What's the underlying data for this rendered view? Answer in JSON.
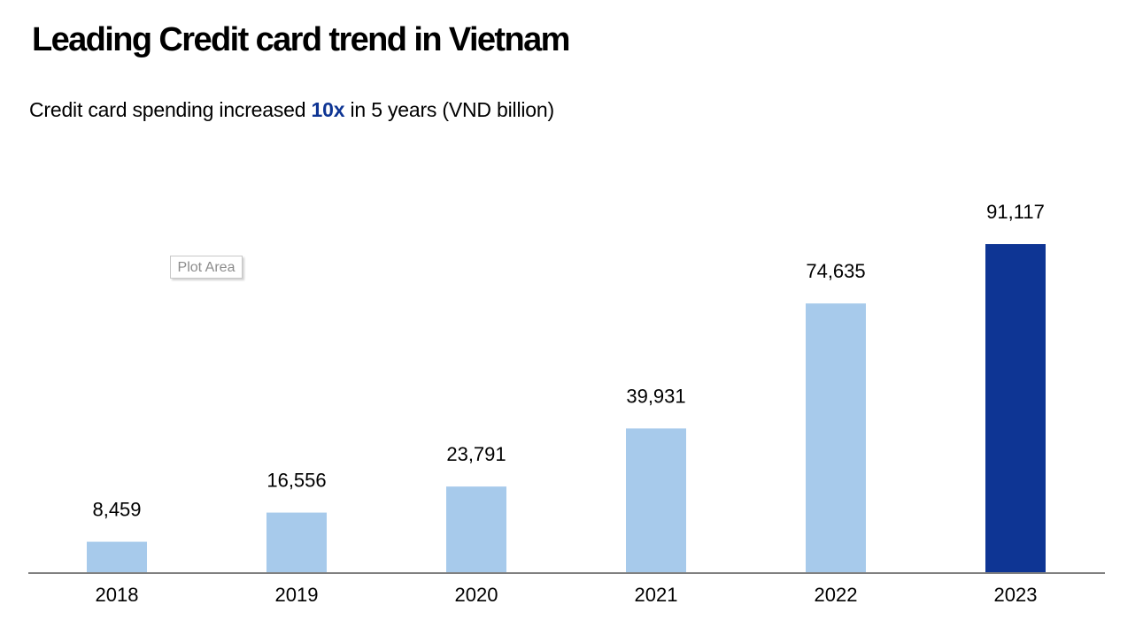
{
  "header": {
    "title": "Leading Credit card trend in Vietnam",
    "subtitle_before": "Credit card spending increased ",
    "subtitle_highlight": "10x",
    "subtitle_after": " in 5 years (VND billion)"
  },
  "plot_area_tag": "Plot Area",
  "colors": {
    "bar_default": "#a7caeb",
    "bar_highlight": "#0e3594",
    "axis": "#808080",
    "highlight_text": "#0e3594"
  },
  "chart_data": {
    "type": "bar",
    "title": "Leading Credit card trend in Vietnam",
    "subtitle": "Credit card spending increased 10x in 5 years (VND billion)",
    "xlabel": "",
    "ylabel": "",
    "categories": [
      "2018",
      "2019",
      "2020",
      "2021",
      "2022",
      "2023"
    ],
    "values": [
      8459,
      16556,
      23791,
      39931,
      74635,
      91117
    ],
    "value_labels": [
      "8,459",
      "16,556",
      "23,791",
      "39,931",
      "74,635",
      "91,117"
    ],
    "highlight_index": 5,
    "ylim": [
      0,
      100000
    ],
    "grid": false,
    "legend": "none"
  }
}
